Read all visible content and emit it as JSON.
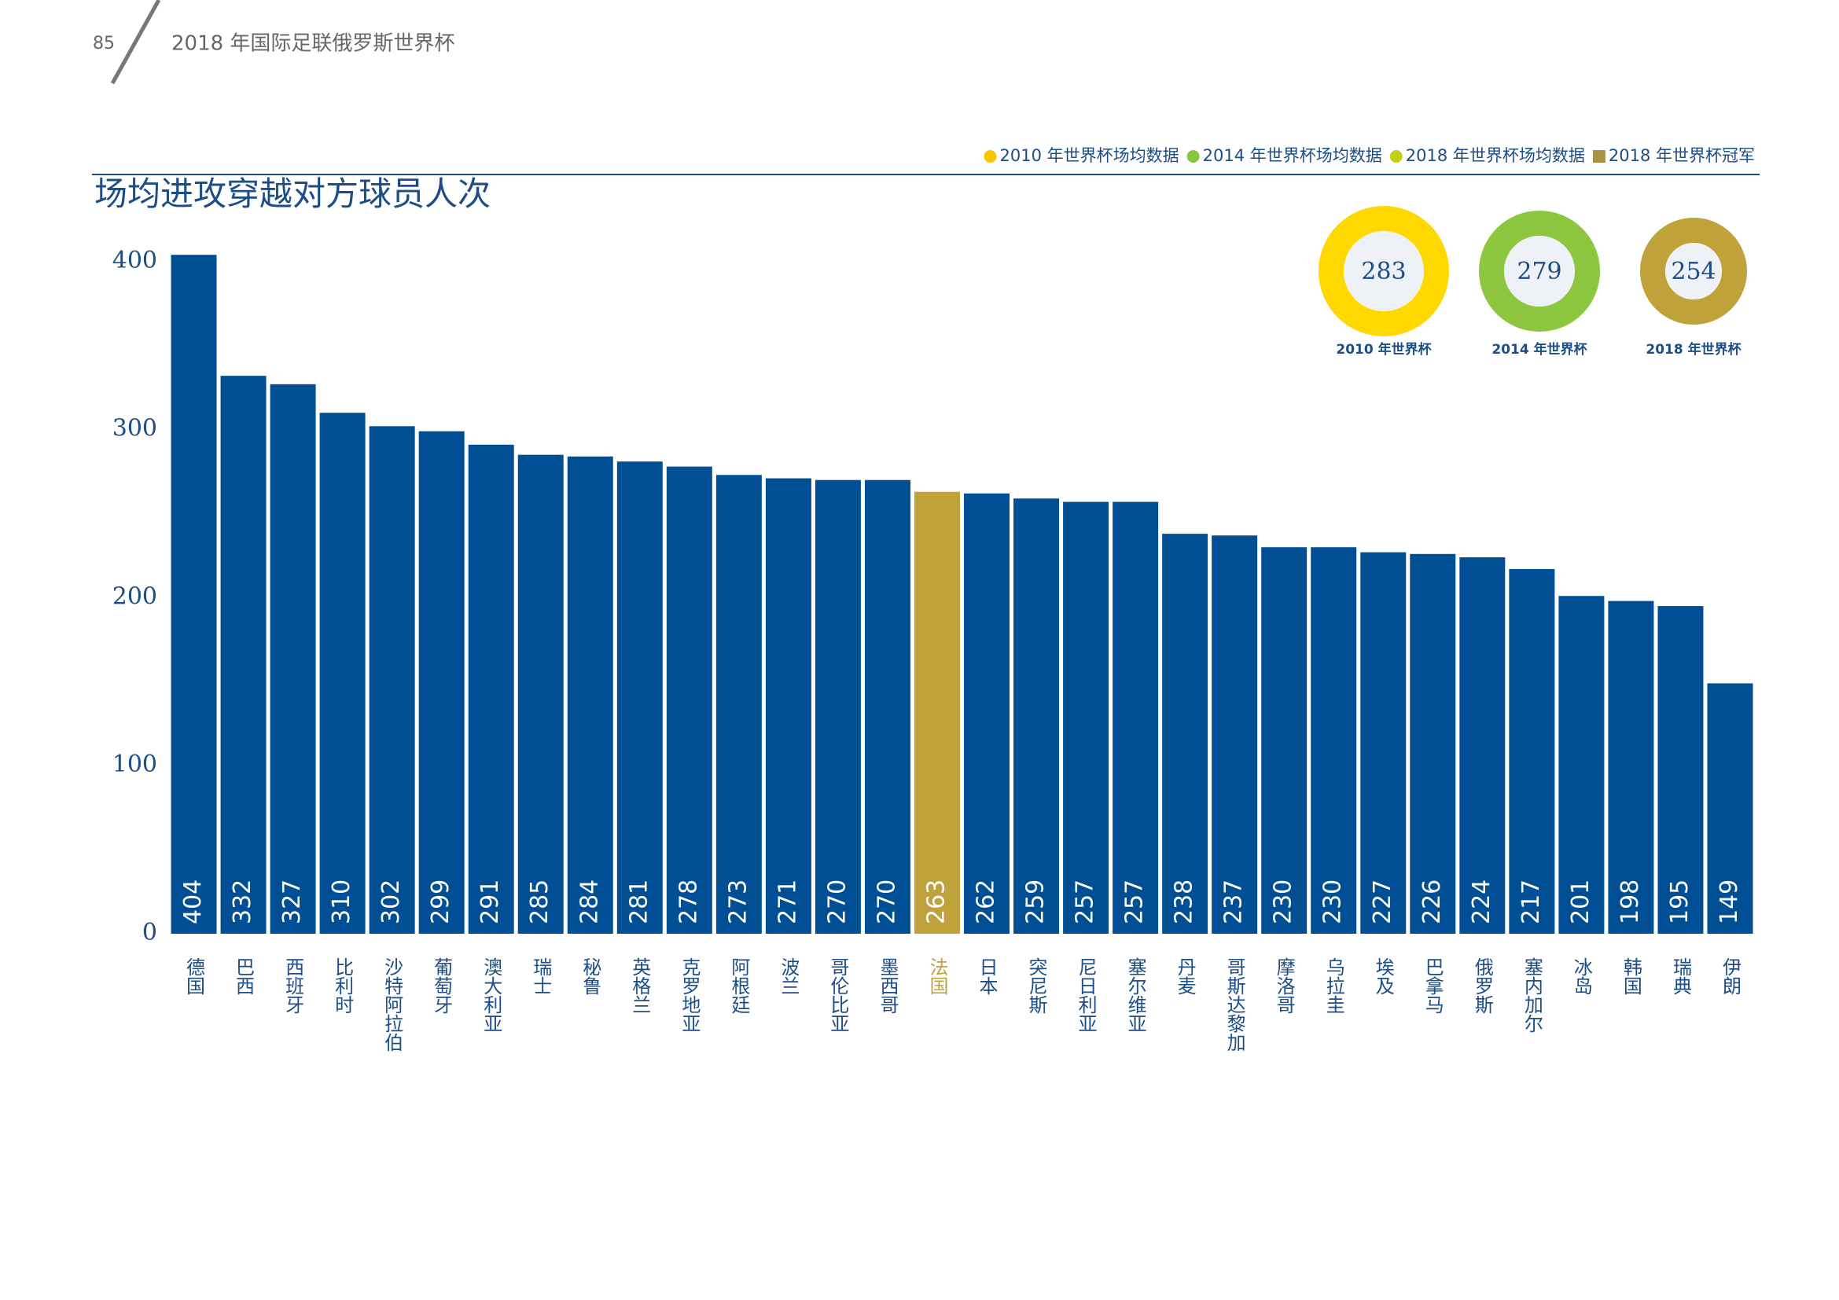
{
  "header": {
    "page": "85",
    "title": "2018 年国际足联俄罗斯世界杯"
  },
  "chart_data": [
    {
      "type": "bar",
      "title": "场均进攻穿越对方球员人次",
      "categories": [
        "德国",
        "巴西",
        "西班牙",
        "比利时",
        "沙特阿拉伯",
        "葡萄牙",
        "澳大利亚",
        "瑞士",
        "秘鲁",
        "英格兰",
        "克罗地亚",
        "阿根廷",
        "波兰",
        "哥伦比亚",
        "墨西哥",
        "法国",
        "日本",
        "突尼斯",
        "尼日利亚",
        "塞尔维亚",
        "丹麦",
        "哥斯达黎加",
        "摩洛哥",
        "乌拉圭",
        "埃及",
        "巴拿马",
        "俄罗斯",
        "塞内加尔",
        "冰岛",
        "韩国",
        "瑞典",
        "伊朗"
      ],
      "values": [
        404,
        332,
        327,
        310,
        302,
        299,
        291,
        285,
        284,
        281,
        278,
        273,
        271,
        270,
        270,
        263,
        262,
        259,
        257,
        257,
        238,
        237,
        230,
        230,
        227,
        226,
        224,
        217,
        201,
        198,
        195,
        149
      ],
      "colors": [
        "#004f94",
        "#004f94",
        "#004f94",
        "#004f94",
        "#004f94",
        "#004f94",
        "#004f94",
        "#004f94",
        "#004f94",
        "#004f94",
        "#004f94",
        "#004f94",
        "#004f94",
        "#004f94",
        "#004f94",
        "#c0a23a",
        "#004f94",
        "#004f94",
        "#004f94",
        "#004f94",
        "#004f94",
        "#004f94",
        "#004f94",
        "#004f94",
        "#004f94",
        "#004f94",
        "#004f94",
        "#004f94",
        "#004f94",
        "#004f94",
        "#004f94",
        "#004f94"
      ],
      "ylim": [
        0,
        420
      ],
      "yticks": [
        0,
        100,
        200,
        300,
        400
      ]
    },
    {
      "type": "donut",
      "legend": [
        {
          "name": "2010 年世界杯场均数据",
          "color": "#f7c600",
          "marker": "circle"
        },
        {
          "name": "2014 年世界杯场均数据",
          "color": "#8cc63f",
          "marker": "circle"
        },
        {
          "name": "2018 年世界杯场均数据",
          "color": "#c4cf16",
          "marker": "circle"
        },
        {
          "name": "2018 年世界杯冠军",
          "color": "#a8924a",
          "marker": "square"
        }
      ],
      "series": [
        {
          "name": "2010 年世界杯",
          "value": 283,
          "color": "#ffd800"
        },
        {
          "name": "2014 年世界杯",
          "value": 279,
          "color": "#8dc63f"
        },
        {
          "name": "2018 年世界杯",
          "value": 254,
          "color": "#bfa23a"
        }
      ]
    }
  ]
}
